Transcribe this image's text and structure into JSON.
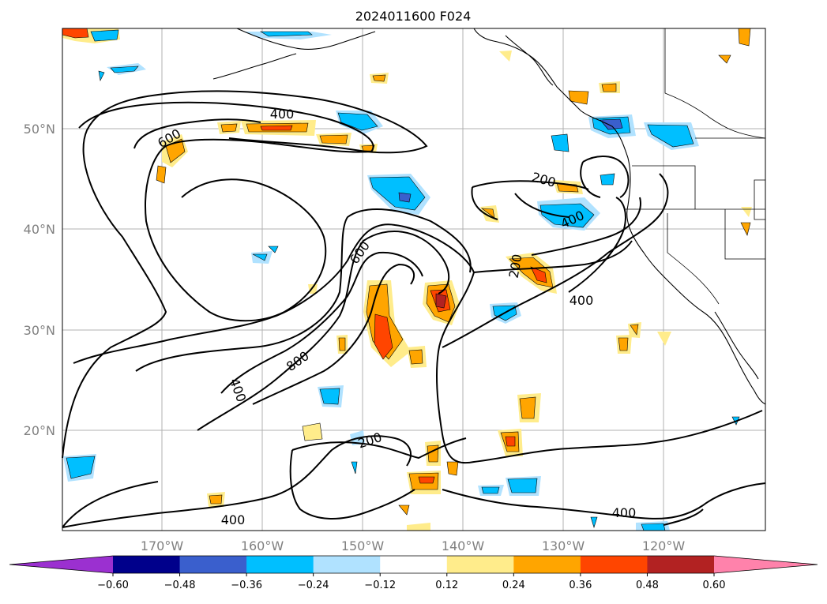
{
  "map": {
    "title": "2024011600 F024",
    "lat_labels": [
      "50°N",
      "40°N",
      "30°N",
      "20°N"
    ],
    "lon_labels": [
      "170°W",
      "160°W",
      "150°W",
      "140°W",
      "130°W",
      "120°W"
    ],
    "contour_labels": [
      "400",
      "600",
      "200",
      "400",
      "600",
      "200",
      "400",
      "800",
      "400",
      "200",
      "400",
      "400"
    ],
    "colorbar": {
      "ticks": [
        "−0.60",
        "−0.48",
        "−0.36",
        "−0.24",
        "−0.12",
        "0.12",
        "0.24",
        "0.36",
        "0.48",
        "0.60"
      ],
      "colors": [
        "#9b30d0",
        "#00008b",
        "#3a5fcd",
        "#00bfff",
        "#b0e2ff",
        "#ffffff",
        "#ffec8b",
        "#ffa500",
        "#ff4500",
        "#b22222",
        "#ff82ab"
      ]
    },
    "palette": {
      "gridline": "#b0b0b0",
      "contour": "#000000",
      "axis_label": "#808080"
    }
  }
}
